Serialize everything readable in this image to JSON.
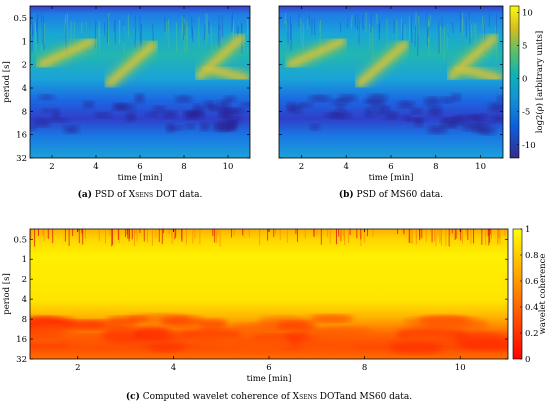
{
  "chart_data": [
    {
      "id": "a",
      "type": "heatmap",
      "title": "",
      "caption": {
        "tag": "(a)",
        "pre": "PSD of ",
        "sc": "Xsens",
        "post": " DOT data."
      },
      "xlabel": "time [min]",
      "ylabel": "period [s]",
      "xlim": [
        1,
        11
      ],
      "ylim": [
        0.35,
        32
      ],
      "yscale": "log2",
      "xticks": [
        2,
        4,
        6,
        8,
        10
      ],
      "yticks": [
        0.5,
        1,
        2,
        4,
        8,
        16,
        32
      ],
      "yticklabels": [
        "0.5",
        "1",
        "2",
        "4",
        "8",
        "16",
        "32"
      ],
      "colormap": "parula",
      "ridges": [
        {
          "x0": 1.5,
          "x1": 3.8,
          "p0": 2.0,
          "p1": 1.0
        },
        {
          "x0": 4.6,
          "x1": 6.6,
          "p0": 3.5,
          "p1": 1.1
        },
        {
          "x0": 8.7,
          "x1": 10.6,
          "p0": 2.8,
          "p1": 0.9
        },
        {
          "x0": 9.0,
          "x1": 10.8,
          "p0": 2.2,
          "p1": 3.0
        }
      ]
    },
    {
      "id": "b",
      "type": "heatmap",
      "title": "",
      "caption": {
        "tag": "(b)",
        "pre": "PSD of MS60 data.",
        "sc": "",
        "post": ""
      },
      "xlabel": "time [min]",
      "ylabel": "",
      "xlim": [
        1,
        11
      ],
      "ylim": [
        0.35,
        32
      ],
      "yscale": "log2",
      "xticks": [
        2,
        4,
        6,
        8,
        10
      ],
      "yticks": [
        0.5,
        1,
        2,
        4,
        8,
        16,
        32
      ],
      "yticklabels": [
        "",
        "",
        "",
        "",
        "",
        "",
        ""
      ],
      "colormap": "parula",
      "colorbar": {
        "label": "log2(ρ) [arbitrary units]",
        "range": [
          -12,
          11
        ],
        "ticks": [
          10,
          5,
          0,
          -5,
          -10
        ],
        "ticklabels": [
          "10",
          "5",
          "0",
          "-5",
          "-10"
        ]
      },
      "ridges": [
        {
          "x0": 1.5,
          "x1": 3.8,
          "p0": 2.0,
          "p1": 1.0
        },
        {
          "x0": 4.6,
          "x1": 6.6,
          "p0": 3.5,
          "p1": 1.1
        },
        {
          "x0": 8.7,
          "x1": 10.6,
          "p0": 2.8,
          "p1": 0.9
        },
        {
          "x0": 9.0,
          "x1": 10.8,
          "p0": 2.2,
          "p1": 3.0
        }
      ]
    },
    {
      "id": "c",
      "type": "heatmap",
      "title": "",
      "caption": {
        "tag": "(c)",
        "pre": "Computed wavelet coherence of ",
        "sc": "Xsens",
        "post": " DOTand MS60 data."
      },
      "xlabel": "time [min]",
      "ylabel": "period [s]",
      "xlim": [
        1,
        11
      ],
      "ylim": [
        0.35,
        32
      ],
      "yscale": "log2",
      "xticks": [
        2,
        4,
        6,
        8,
        10
      ],
      "yticks": [
        0.5,
        1,
        2,
        4,
        8,
        16,
        32
      ],
      "yticklabels": [
        "0.5",
        "1",
        "2",
        "4",
        "8",
        "16",
        "32"
      ],
      "colormap": "autumn",
      "colorbar": {
        "label": "wavelet coherence",
        "range": [
          0,
          1
        ],
        "ticks": [
          1,
          0.8,
          0.6,
          0.4,
          0.2,
          0
        ],
        "ticklabels": [
          "1",
          "0.8",
          "0.6",
          "0.4",
          "0.2",
          "0"
        ]
      }
    }
  ]
}
